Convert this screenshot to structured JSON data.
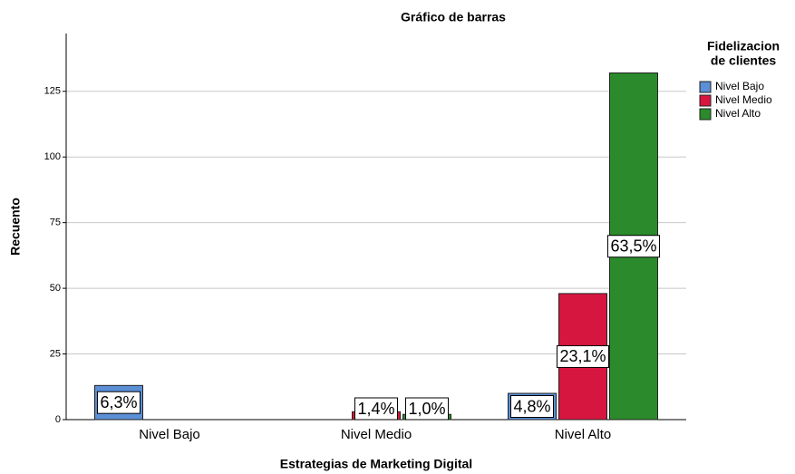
{
  "chart_data": {
    "type": "bar",
    "title": "Gráfico de barras",
    "xlabel": "Estrategias de Marketing Digital",
    "ylabel": "Recuento",
    "legend_title": [
      "Fidelizacion",
      "de clientes"
    ],
    "categories": [
      "Nivel Bajo",
      "Nivel Medio",
      "Nivel Alto"
    ],
    "series": [
      {
        "name": "Nivel Bajo",
        "color": "#5b8fd6",
        "values": [
          13,
          null,
          10
        ],
        "value_labels": [
          "6,3%",
          null,
          "4,8%"
        ]
      },
      {
        "name": "Nivel Medio",
        "color": "#d7163f",
        "values": [
          null,
          3,
          48
        ],
        "value_labels": [
          null,
          "1,4%",
          "23,1%"
        ]
      },
      {
        "name": "Nivel Alto",
        "color": "#2b8a2b",
        "values": [
          null,
          2,
          132
        ],
        "value_labels": [
          null,
          "1,0%",
          "63,5%"
        ]
      }
    ],
    "ylim": [
      0,
      147
    ],
    "yticks": [
      0,
      25,
      50,
      75,
      100,
      125
    ],
    "grid": true,
    "legend": "right"
  }
}
